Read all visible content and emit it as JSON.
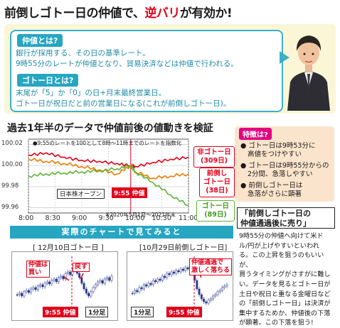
{
  "headline": {
    "part1": "前倒しゴトー日の仲値で、",
    "part2": "逆バリ",
    "part3": "が有効か!"
  },
  "info": {
    "q1": "仲値とは?",
    "q1_lines": [
      "銀行が採用する、その日の基準レート。",
      "9時55分のレートが仲値となり、貿易決済などは仲値で行われる。"
    ],
    "q2": "ゴトー日とは?",
    "q2_lines": [
      "末尾が「5」か「0」の日+月末最終営業日。",
      "ゴトー日が祝日だと前の営業日になる(これが前倒しゴトー日)。"
    ]
  },
  "chart_title": "過去1年半のデータで仲値前後の値動きを検証",
  "chart_data": {
    "type": "line",
    "note": "●9:55のレートを100として8時〜11時までのレートを指数化",
    "x_ticks": [
      "8:00",
      "8:30",
      "9:00",
      "9:30",
      "10:00",
      "10:30",
      "11:00"
    ],
    "y_ticks": [
      "100.02",
      "100.00",
      "99.98",
      "99.96"
    ],
    "ylim": [
      99.955,
      100.025
    ],
    "period": "※2020年5月1日〜2021年末",
    "annotation_open": "日本株オープン",
    "annotation_955": "9:55 仲値",
    "series": [
      {
        "name": "非ゴトー日",
        "count": "(309日)",
        "color": "#e2001a",
        "x": [
          "8:00",
          "8:20",
          "8:40",
          "9:00",
          "9:20",
          "9:40",
          "9:55",
          "10:00",
          "10:20",
          "10:40",
          "11:00"
        ],
        "values": [
          100.01,
          100.012,
          100.008,
          100.005,
          100.004,
          100.002,
          100.0,
          99.999,
          100.003,
          100.006,
          100.008
        ]
      },
      {
        "name": "前倒しゴトー日",
        "count": "(38日)",
        "color": "#f07a00",
        "x": [
          "8:00",
          "8:20",
          "8:40",
          "9:00",
          "9:20",
          "9:40",
          "9:55",
          "10:00",
          "10:20",
          "10:40",
          "11:00"
        ],
        "values": [
          100.006,
          100.004,
          100.002,
          99.999,
          99.996,
          99.992,
          100.0,
          99.994,
          99.988,
          99.99,
          99.992
        ]
      },
      {
        "name": "ゴトー日",
        "count": "(89日)",
        "color": "#5cb531",
        "x": [
          "8:00",
          "8:20",
          "8:40",
          "9:00",
          "9:20",
          "9:40",
          "9:55",
          "10:00",
          "10:20",
          "10:40",
          "11:00"
        ],
        "values": [
          99.99,
          99.992,
          99.993,
          99.994,
          99.995,
          99.997,
          100.0,
          99.994,
          99.984,
          99.972,
          99.962
        ]
      }
    ]
  },
  "features": {
    "tag": "特徴は?",
    "items": [
      [
        "ゴトー日は9時53分に",
        "高値をつけやすい"
      ],
      [
        "ゴトー日は9時55分からの",
        "2分間、急落しやすい"
      ],
      [
        "前倒しゴトー日は",
        "急落がさらに顕著"
      ]
    ]
  },
  "right": {
    "title_lines": [
      "「前倒しゴトー日の",
      "仲値通過後に売り」"
    ],
    "body_lines": [
      "9時55分の仲値へ向けて米ド",
      "ル/円が上げやすいといわれ",
      "る。この上昇を狙うのもいいが、",
      "買うタイミングがさすがに難し",
      "い。データを見るとゴトー日が",
      "土日や祝日と重なる金曜日など",
      "の「前倒しゴトー日」は決済が",
      "集中するためか、仲値後の下落",
      "が顕著。この下落を狙う!"
    ]
  },
  "bottom": {
    "banner": "実際のチャートで見てみると",
    "left_caption": "[ 12月10日ゴトー日 ]",
    "right_caption": "[10月29日前倒しゴトー日]",
    "left_ann1": [
      "仲値は",
      "買い"
    ],
    "left_ann2": "戻す",
    "right_ann": [
      "仲値通過で",
      "激しく落ちる"
    ],
    "label_955": "9:55 仲値",
    "label_1min": "1分足"
  }
}
